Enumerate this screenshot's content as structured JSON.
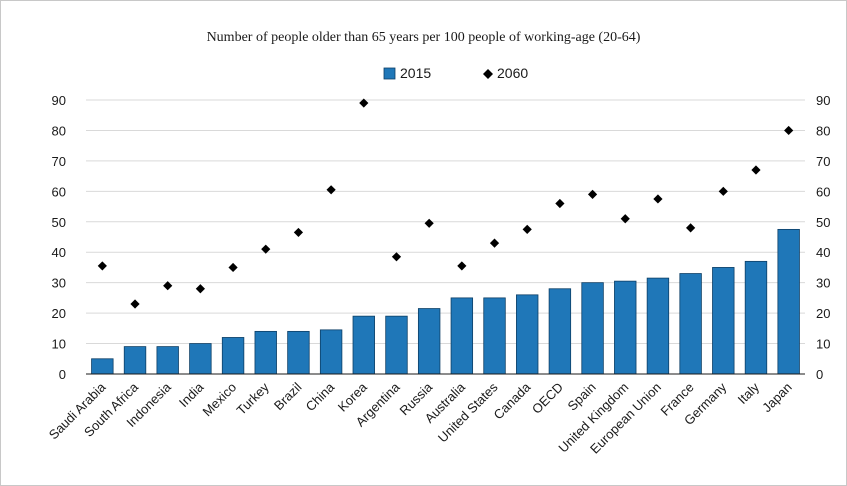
{
  "chart_data": {
    "type": "bar",
    "title": "Number of people older than 65 years per 100 people of working-age (20-64)",
    "categories": [
      "Saudi Arabia",
      "South Africa",
      "Indonesia",
      "India",
      "Mexico",
      "Turkey",
      "Brazil",
      "China",
      "Korea",
      "Argentina",
      "Russia",
      "Australia",
      "United States",
      "Canada",
      "OECD",
      "Spain",
      "United Kingdom",
      "European Union",
      "France",
      "Germany",
      "Italy",
      "Japan"
    ],
    "series": [
      {
        "name": "2015",
        "kind": "bar",
        "color": "#1f77b8",
        "values": [
          5,
          9,
          9,
          10,
          12,
          14,
          14,
          14.5,
          19,
          19,
          21.5,
          25,
          25,
          26,
          28,
          30,
          30.5,
          31.5,
          33,
          35,
          37,
          47.5
        ]
      },
      {
        "name": "2060",
        "kind": "marker",
        "color": "#000000",
        "values": [
          35.5,
          23,
          29,
          28,
          35,
          41,
          46.5,
          60.5,
          89,
          38.5,
          49.5,
          35.5,
          43,
          47.5,
          56,
          59,
          51,
          57.5,
          48,
          60,
          67,
          80
        ]
      }
    ],
    "ylim": [
      0,
      90
    ],
    "yticks": [
      0,
      10,
      20,
      30,
      40,
      50,
      60,
      70,
      80,
      90
    ],
    "grid": true,
    "legend_position": "top-center",
    "secondary_y_axis": true
  }
}
